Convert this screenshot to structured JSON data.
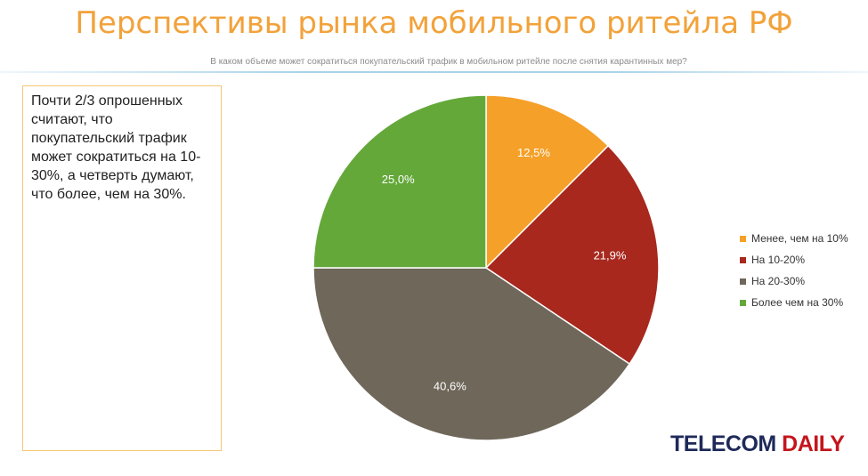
{
  "header": {
    "title": "Перспективы рынка мобильного ритейла РФ",
    "subtitle": "В каком объеме может сократиться покупательский трафик в мобильном ритейле после снятия карантинных мер?"
  },
  "note": {
    "text": "Почти 2/3 опрошенных считают, что покупательский трафик может сократиться на 10-30%, а четверть думают, что более, чем на 30%."
  },
  "logo": {
    "part1": "TELECOM ",
    "part2": "DAILY",
    "colors": {
      "part1": "#1f2a5a",
      "part2": "#c4161c"
    }
  },
  "chart_data": {
    "type": "pie",
    "title": "",
    "slices": [
      {
        "label": "Менее, чем на 10%",
        "value": 12.5,
        "value_label": "12,5%",
        "color": "#f5a028"
      },
      {
        "label": "На 10-20%",
        "value": 21.9,
        "value_label": "21,9%",
        "color": "#a8281e"
      },
      {
        "label": "На 20-30%",
        "value": 40.6,
        "value_label": "40,6%",
        "color": "#6e675a"
      },
      {
        "label": "Более чем на 30%",
        "value": 25.0,
        "value_label": "25,0%",
        "color": "#64a83a"
      }
    ],
    "start_angle": "12 o'clock",
    "direction": "clockwise",
    "legend_position": "right"
  }
}
